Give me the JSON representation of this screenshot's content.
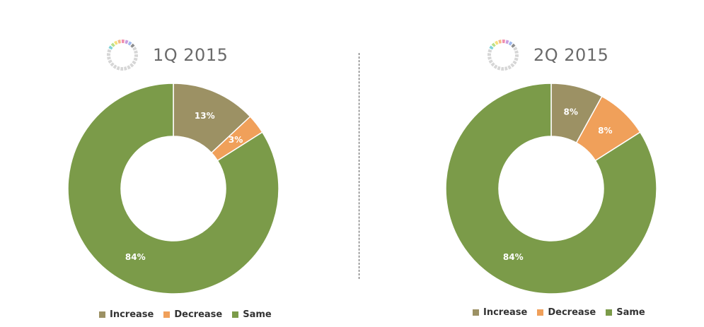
{
  "colors": {
    "Increase": "#9c9164",
    "Decrease": "#f0a05a",
    "Same": "#7b9b49"
  },
  "chart_data": [
    {
      "type": "pie",
      "title": "1Q 2015",
      "categories": [
        "Increase",
        "Decrease",
        "Same"
      ],
      "values": [
        13,
        3,
        84
      ],
      "labels": [
        "13%",
        "3%",
        "84%"
      ],
      "donut": true,
      "legend_placement": "bottom"
    },
    {
      "type": "pie",
      "title": "2Q 2015",
      "categories": [
        "Increase",
        "Decrease",
        "Same"
      ],
      "values": [
        8,
        8,
        84
      ],
      "labels": [
        "8%",
        "8%",
        "84%"
      ],
      "donut": true,
      "legend_placement": "bottom"
    }
  ]
}
